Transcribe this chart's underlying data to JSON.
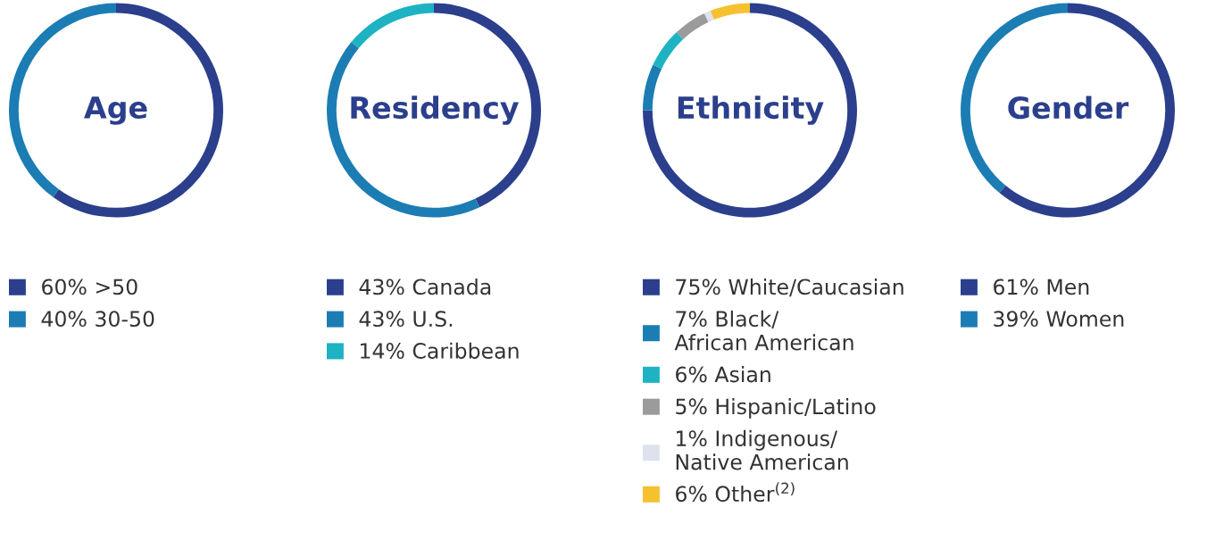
{
  "chart_data": [
    {
      "type": "donut",
      "title": "Age",
      "categories": [
        ">50",
        "30-50"
      ],
      "values": [
        60,
        40
      ],
      "value_labels": [
        "60%",
        "40%"
      ],
      "colors": [
        "#2b3f8c",
        "#1b7db3"
      ],
      "legend": "bottom"
    },
    {
      "type": "donut",
      "title": "Residency",
      "categories": [
        "Canada",
        "U.S.",
        "Caribbean"
      ],
      "values": [
        43,
        43,
        14
      ],
      "value_labels": [
        "43%",
        "43%",
        "14%"
      ],
      "colors": [
        "#2b3f8c",
        "#1b7db3",
        "#1db3c2"
      ],
      "legend": "bottom"
    },
    {
      "type": "donut",
      "title": "Ethnicity",
      "categories": [
        "White/Caucasian",
        "Black/\nAfrican American",
        "Asian",
        "Hispanic/Latino",
        "Indigenous/\nNative American",
        "Other$^{(2)}$"
      ],
      "values": [
        75,
        7,
        6,
        5,
        1,
        6
      ],
      "value_labels": [
        "75%",
        "7%",
        "6%",
        "5%",
        "1%",
        "6%"
      ],
      "colors": [
        "#2b3f8c",
        "#1b7db3",
        "#1db3c2",
        "#9b9b9b",
        "#dde2ee",
        "#f6c12f"
      ],
      "legend": "bottom"
    },
    {
      "type": "donut",
      "title": "Gender",
      "categories": [
        "Men",
        "Women"
      ],
      "values": [
        61,
        39
      ],
      "value_labels": [
        "61%",
        "39%"
      ],
      "colors": [
        "#2b3f8c",
        "#1b7db3"
      ],
      "legend": "bottom"
    }
  ]
}
